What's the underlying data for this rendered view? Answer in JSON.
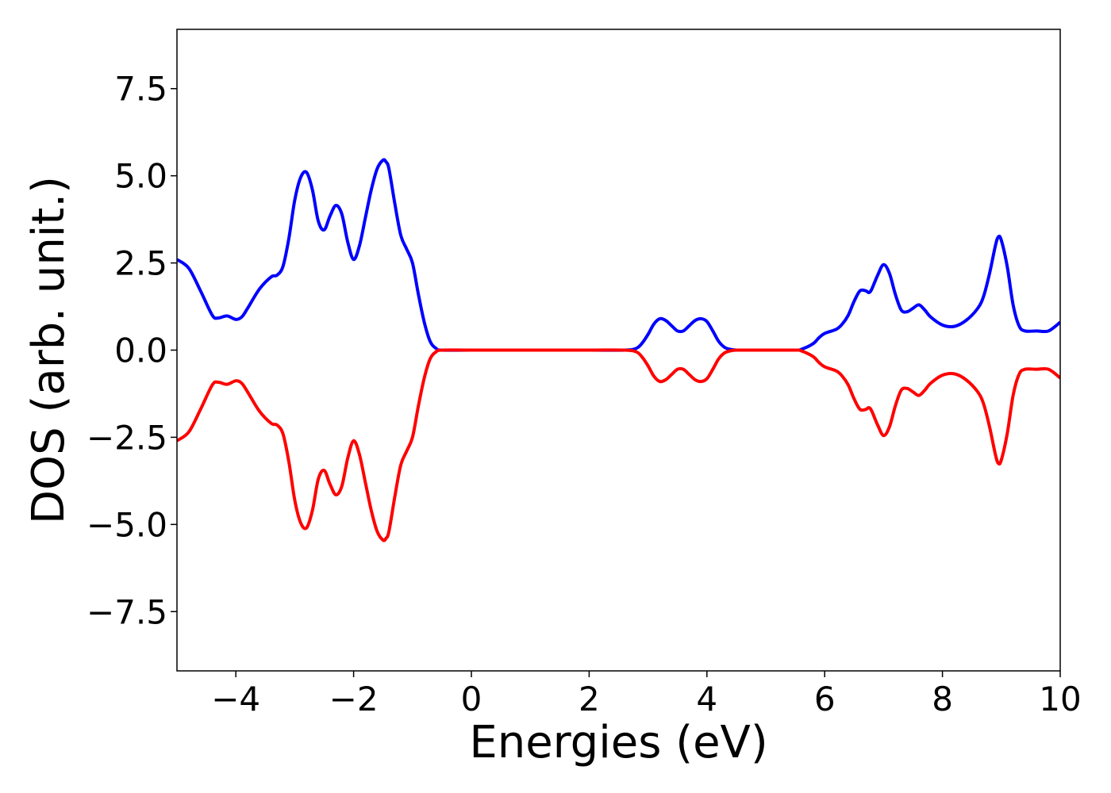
{
  "chart_data": {
    "type": "line",
    "title": "",
    "xlabel": "Energies (eV)",
    "ylabel": "DOS (arb. unit.)",
    "xlim": [
      -5,
      10
    ],
    "ylim": [
      -9.2,
      9.2
    ],
    "grid": false,
    "xticks": [
      -4,
      -2,
      0,
      2,
      4,
      6,
      8,
      10
    ],
    "xtick_labels": [
      "−4",
      "−2",
      "0",
      "2",
      "4",
      "6",
      "8",
      "10"
    ],
    "yticks": [
      -7.5,
      -5.0,
      -2.5,
      0.0,
      2.5,
      5.0,
      7.5
    ],
    "ytick_labels": [
      "−7.5",
      "−5.0",
      "−2.5",
      "0.0",
      "2.5",
      "5.0",
      "7.5"
    ],
    "series": [
      {
        "color": "#0000ff",
        "x": [
          -5.0,
          -4.8,
          -4.6,
          -4.4,
          -4.3,
          -4.15,
          -4.0,
          -3.9,
          -3.8,
          -3.6,
          -3.4,
          -3.3,
          -3.2,
          -3.1,
          -3.0,
          -2.9,
          -2.8,
          -2.7,
          -2.6,
          -2.5,
          -2.4,
          -2.3,
          -2.2,
          -2.1,
          -2.0,
          -1.9,
          -1.8,
          -1.7,
          -1.6,
          -1.5,
          -1.45,
          -1.4,
          -1.3,
          -1.2,
          -1.1,
          -1.0,
          -0.9,
          -0.8,
          -0.7,
          -0.6,
          -0.5,
          0.0,
          1.0,
          2.0,
          2.6,
          2.8,
          2.9,
          3.0,
          3.1,
          3.2,
          3.3,
          3.4,
          3.5,
          3.6,
          3.7,
          3.8,
          3.9,
          4.0,
          4.1,
          4.2,
          4.3,
          4.4,
          4.5,
          4.7,
          5.0,
          5.5,
          5.6,
          5.8,
          5.9,
          6.0,
          6.2,
          6.3,
          6.4,
          6.5,
          6.6,
          6.7,
          6.75,
          6.8,
          6.9,
          7.0,
          7.1,
          7.2,
          7.3,
          7.4,
          7.5,
          7.6,
          7.7,
          7.8,
          8.0,
          8.2,
          8.4,
          8.6,
          8.7,
          8.8,
          8.9,
          8.95,
          9.0,
          9.1,
          9.2,
          9.3,
          9.4,
          9.6,
          9.8,
          10.0
        ],
        "y": [
          2.6,
          2.35,
          1.7,
          1.0,
          0.92,
          0.98,
          0.88,
          0.95,
          1.2,
          1.75,
          2.1,
          2.15,
          2.4,
          3.2,
          4.3,
          4.95,
          5.1,
          4.6,
          3.7,
          3.45,
          3.85,
          4.15,
          3.9,
          3.1,
          2.6,
          3.0,
          3.8,
          4.6,
          5.2,
          5.45,
          5.4,
          5.2,
          4.2,
          3.3,
          2.9,
          2.5,
          1.6,
          0.8,
          0.25,
          0.05,
          0.0,
          0.0,
          0.0,
          0.0,
          0.0,
          0.05,
          0.2,
          0.45,
          0.75,
          0.9,
          0.85,
          0.7,
          0.55,
          0.55,
          0.7,
          0.85,
          0.9,
          0.82,
          0.55,
          0.25,
          0.08,
          0.02,
          0.0,
          0.0,
          0.0,
          0.0,
          0.02,
          0.18,
          0.35,
          0.48,
          0.6,
          0.75,
          1.0,
          1.4,
          1.7,
          1.7,
          1.65,
          1.75,
          2.15,
          2.45,
          2.2,
          1.6,
          1.15,
          1.1,
          1.2,
          1.3,
          1.15,
          0.95,
          0.72,
          0.68,
          0.85,
          1.2,
          1.55,
          2.2,
          3.0,
          3.25,
          3.15,
          2.4,
          1.3,
          0.7,
          0.55,
          0.55,
          0.55,
          0.8
        ]
      },
      {
        "color": "#ff0000",
        "x": [
          -5.0,
          -4.8,
          -4.6,
          -4.4,
          -4.3,
          -4.15,
          -4.0,
          -3.9,
          -3.8,
          -3.6,
          -3.4,
          -3.3,
          -3.2,
          -3.1,
          -3.0,
          -2.9,
          -2.8,
          -2.7,
          -2.6,
          -2.5,
          -2.4,
          -2.3,
          -2.2,
          -2.1,
          -2.0,
          -1.9,
          -1.8,
          -1.7,
          -1.6,
          -1.5,
          -1.45,
          -1.4,
          -1.3,
          -1.2,
          -1.1,
          -1.0,
          -0.9,
          -0.8,
          -0.7,
          -0.6,
          -0.5,
          0.0,
          1.0,
          2.0,
          2.6,
          2.8,
          2.9,
          3.0,
          3.1,
          3.2,
          3.3,
          3.4,
          3.5,
          3.6,
          3.7,
          3.8,
          3.9,
          4.0,
          4.1,
          4.2,
          4.3,
          4.4,
          4.5,
          4.7,
          5.0,
          5.5,
          5.6,
          5.8,
          5.9,
          6.0,
          6.2,
          6.3,
          6.4,
          6.5,
          6.6,
          6.7,
          6.75,
          6.8,
          6.9,
          7.0,
          7.1,
          7.2,
          7.3,
          7.4,
          7.5,
          7.6,
          7.7,
          7.8,
          8.0,
          8.2,
          8.4,
          8.6,
          8.7,
          8.8,
          8.9,
          8.95,
          9.0,
          9.1,
          9.2,
          9.3,
          9.4,
          9.6,
          9.8,
          10.0
        ],
        "y": [
          -2.6,
          -2.35,
          -1.7,
          -1.0,
          -0.92,
          -0.98,
          -0.88,
          -0.95,
          -1.2,
          -1.75,
          -2.1,
          -2.15,
          -2.4,
          -3.2,
          -4.3,
          -4.95,
          -5.1,
          -4.6,
          -3.7,
          -3.45,
          -3.85,
          -4.15,
          -3.9,
          -3.1,
          -2.6,
          -3.0,
          -3.8,
          -4.6,
          -5.2,
          -5.45,
          -5.4,
          -5.2,
          -4.2,
          -3.3,
          -2.9,
          -2.5,
          -1.6,
          -0.8,
          -0.25,
          -0.05,
          0.0,
          0.0,
          0.0,
          0.0,
          0.0,
          -0.05,
          -0.2,
          -0.45,
          -0.75,
          -0.9,
          -0.85,
          -0.7,
          -0.55,
          -0.55,
          -0.7,
          -0.85,
          -0.9,
          -0.82,
          -0.55,
          -0.25,
          -0.08,
          -0.02,
          0.0,
          0.0,
          0.0,
          0.0,
          -0.02,
          -0.18,
          -0.35,
          -0.48,
          -0.6,
          -0.75,
          -1.0,
          -1.4,
          -1.7,
          -1.7,
          -1.65,
          -1.75,
          -2.15,
          -2.45,
          -2.2,
          -1.6,
          -1.15,
          -1.1,
          -1.2,
          -1.3,
          -1.15,
          -0.95,
          -0.72,
          -0.68,
          -0.85,
          -1.2,
          -1.55,
          -2.2,
          -3.0,
          -3.25,
          -3.15,
          -2.4,
          -1.3,
          -0.7,
          -0.55,
          -0.55,
          -0.55,
          -0.8
        ]
      }
    ]
  }
}
